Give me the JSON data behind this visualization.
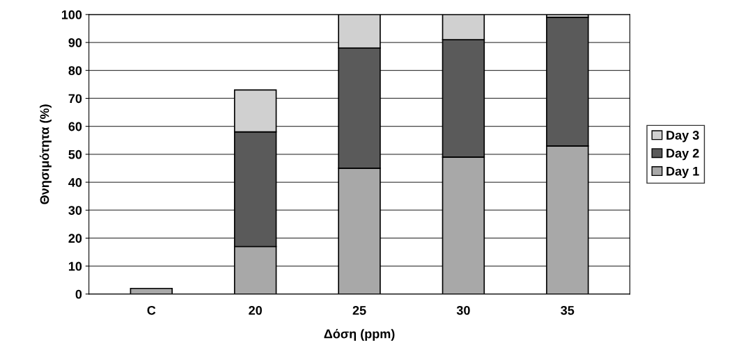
{
  "chart_data": {
    "type": "bar",
    "stacked": true,
    "xlabel": "Δόση (ppm)",
    "ylabel": "Θνησιμότητα (%)",
    "categories": [
      "C",
      "20",
      "25",
      "30",
      "35"
    ],
    "series": [
      {
        "name": "Day 1",
        "color": "#a8a8a8",
        "values": [
          2,
          17,
          45,
          49,
          53
        ]
      },
      {
        "name": "Day 2",
        "color": "#5a5a5a",
        "values": [
          null,
          41,
          43,
          42,
          46
        ]
      },
      {
        "name": "Day 3",
        "color": "#d0d0d0",
        "values": [
          null,
          15,
          12,
          9,
          1
        ]
      }
    ],
    "ylim": [
      0,
      100
    ],
    "yticks": [
      0,
      10,
      20,
      30,
      40,
      50,
      60,
      70,
      80,
      90,
      100
    ],
    "grid": "y",
    "legend": "right"
  }
}
